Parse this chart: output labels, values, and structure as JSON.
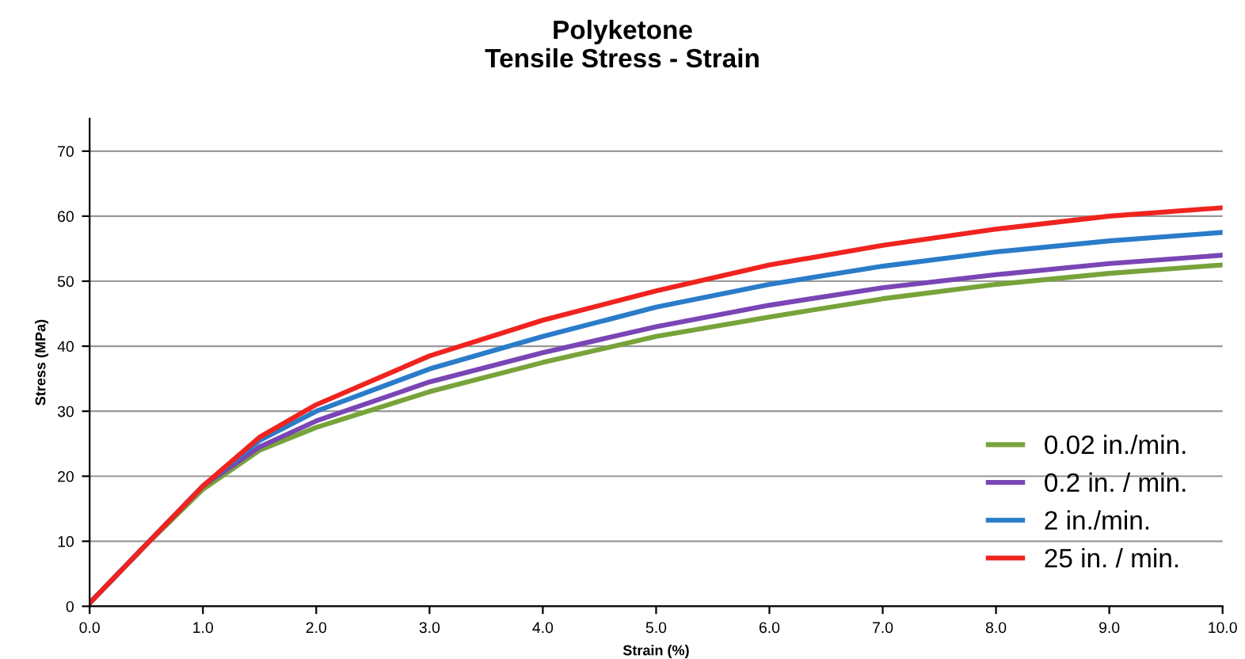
{
  "chart_data": {
    "type": "line",
    "title": "Polyketone\nTensile Stress - Strain",
    "xlabel": "Strain (%)",
    "ylabel": "Stress (MPa)",
    "x": [
      0,
      0.5,
      1,
      1.5,
      2,
      3,
      4,
      5,
      6,
      7,
      8,
      9,
      10
    ],
    "series": [
      {
        "name": "0.02 in./min.",
        "color": "#77a33a",
        "values": [
          0.5,
          9.5,
          18,
          24,
          27.5,
          33,
          37.5,
          41.5,
          44.5,
          47.3,
          49.5,
          51.2,
          52.5
        ]
      },
      {
        "name": "0.2 in. / min.",
        "color": "#7a45b5",
        "values": [
          0.5,
          9.5,
          18.5,
          24.5,
          28.5,
          34.5,
          39,
          43,
          46.3,
          49,
          51,
          52.7,
          54
        ]
      },
      {
        "name": "2 in./min.",
        "color": "#2a7cc9",
        "values": [
          0.5,
          9.5,
          18.5,
          25.5,
          30,
          36.5,
          41.5,
          46,
          49.5,
          52.3,
          54.5,
          56.2,
          57.5
        ]
      },
      {
        "name": "25 in. / min.",
        "color": "#f0231e",
        "values": [
          0.5,
          9.5,
          18.5,
          26,
          31,
          38.5,
          44,
          48.5,
          52.5,
          55.5,
          58,
          60,
          61.3
        ]
      }
    ],
    "xlim": [
      0,
      10
    ],
    "xticks": [
      {
        "value": 0,
        "label": "0.0"
      },
      {
        "value": 1,
        "label": "1.0"
      },
      {
        "value": 2,
        "label": "2.0"
      },
      {
        "value": 3,
        "label": "3.0"
      },
      {
        "value": 4,
        "label": "4.0"
      },
      {
        "value": 5,
        "label": "5.0"
      },
      {
        "value": 6,
        "label": "6.0"
      },
      {
        "value": 7,
        "label": "7.0"
      },
      {
        "value": 8,
        "label": "8.0"
      },
      {
        "value": 9,
        "label": "9.0"
      },
      {
        "value": 10,
        "label": "10.0"
      }
    ],
    "ylim": [
      0,
      75
    ],
    "yticks": [
      0,
      10,
      20,
      30,
      40,
      50,
      60,
      70
    ],
    "grid": "y",
    "legend": "bottom right",
    "marker": "none",
    "line_style": "solid"
  }
}
